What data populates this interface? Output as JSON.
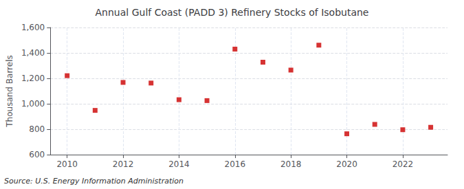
{
  "chart_data": {
    "type": "scatter",
    "title": "Annual Gulf Coast (PADD 3) Refinery Stocks of Isobutane",
    "ylabel": "Thousand Barrels",
    "annotation": "Source: U.S. Energy Information Administration",
    "x": [
      2010,
      2011,
      2012,
      2013,
      2014,
      2015,
      2016,
      2017,
      2018,
      2019,
      2020,
      2021,
      2022,
      2023
    ],
    "values": [
      1221,
      948,
      1168,
      1163,
      1032,
      1025,
      1430,
      1327,
      1265,
      1461,
      764,
      838,
      796,
      815
    ],
    "color": "#cc0000",
    "marker": "square",
    "xlim": [
      2009.4,
      2023.6
    ],
    "xticks": [
      2010,
      2012,
      2014,
      2016,
      2018,
      2020,
      2022
    ],
    "ylim": [
      600,
      1600
    ],
    "yticks": [
      600,
      800,
      {
        "value": 1000,
        "label": "1,000"
      },
      {
        "value": 1200,
        "label": "1,200"
      },
      {
        "value": 1400,
        "label": "1,400"
      },
      {
        "value": 1600,
        "label": "1,600"
      }
    ],
    "grid": true
  }
}
